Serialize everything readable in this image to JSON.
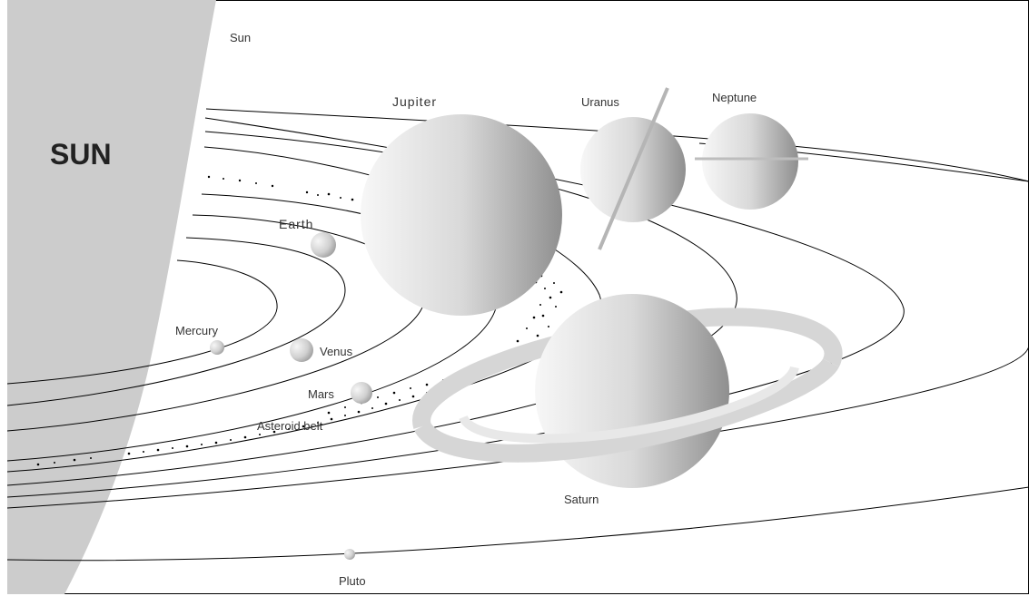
{
  "labels": {
    "sun_small": "Sun",
    "sun_big": "SUN",
    "mercury": "Mercury",
    "venus": "Venus",
    "earth": "Earth",
    "mars": "Mars",
    "asteroid_belt": "Asteroid belt",
    "jupiter": "Jupiter",
    "saturn": "Saturn",
    "uranus": "Uranus",
    "neptune": "Neptune",
    "pluto": "Pluto"
  },
  "colors": {
    "sun": "#cccccc",
    "orbit": "#000000",
    "planet_light": "#f4f4f4",
    "planet_dark": "#9a9a9a",
    "ring": "#d6d6d6",
    "label": "#333333"
  }
}
